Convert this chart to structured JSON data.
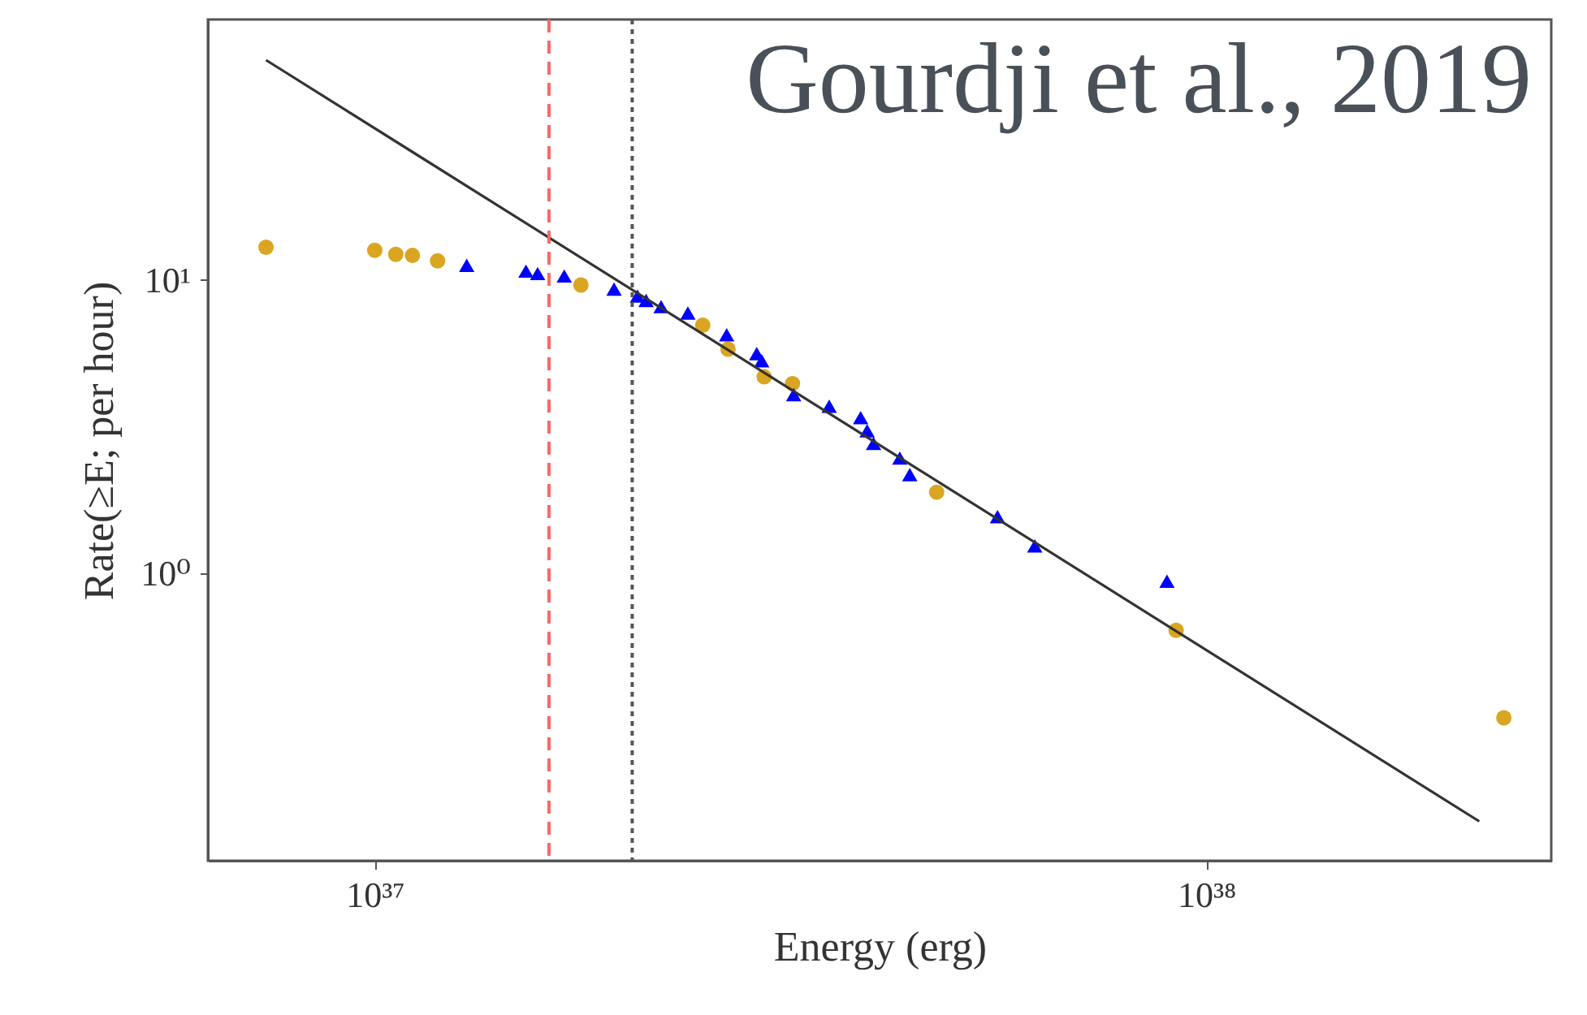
{
  "chart_data": {
    "type": "scatter",
    "xlabel": "Energy (erg)",
    "ylabel": "Rate(≥E; per hour)",
    "log": "xy",
    "grid": false,
    "xlim": [
      6.3e+36,
      2.6e+38
    ],
    "ylim": [
      0.105,
      77
    ],
    "xticks": [
      {
        "value": 1e+37,
        "label": "10³⁷"
      },
      {
        "value": 1e+38,
        "label": "10³⁸"
      }
    ],
    "yticks": [
      {
        "value": 1,
        "label": "10⁰"
      },
      {
        "value": 10,
        "label": "10¹"
      }
    ],
    "annotations": [
      "Gourdji et al., 2019"
    ],
    "ref_lines": [
      {
        "axis": "x",
        "value": 1.62e+37,
        "color": "#ff6666",
        "line_style": "dashed"
      },
      {
        "axis": "x",
        "value": 2.04e+37,
        "color": "#555555",
        "line_style": "dotted"
      }
    ],
    "series": [
      {
        "color": "#daa520",
        "marker": "circle",
        "x": [
          7.4e+36,
          1e+37,
          1.06e+37,
          1.11e+37,
          1.19e+37,
          1.77e+37,
          2.48e+37,
          2.66e+37,
          2.94e+37,
          3.18e+37,
          4.74e+37,
          9.2e+37,
          2.28e+38
        ],
        "values": [
          12.9,
          12.6,
          12.2,
          12.1,
          11.6,
          9.6,
          7.0,
          5.8,
          4.67,
          4.43,
          1.89,
          0.64,
          0.322
        ]
      },
      {
        "color": "#0000ff",
        "marker": "triangle",
        "x": [
          1.29e+37,
          1.52e+37,
          1.57e+37,
          1.69e+37,
          1.94e+37,
          2.07e+37,
          2.12e+37,
          2.21e+37,
          2.38e+37,
          2.65e+37,
          2.88e+37,
          2.92e+37,
          3.19e+37,
          3.52e+37,
          3.84e+37,
          3.91e+37,
          3.98e+37,
          4.28e+37,
          4.4e+37,
          5.61e+37,
          6.22e+37,
          8.97e+37
        ],
        "values": [
          11.2,
          10.7,
          10.5,
          10.3,
          9.3,
          8.8,
          8.5,
          8.1,
          7.7,
          6.5,
          5.6,
          5.3,
          4.06,
          3.71,
          3.39,
          3.06,
          2.77,
          2.47,
          2.17,
          1.56,
          1.24,
          0.94
        ]
      },
      {
        "type": "line",
        "color": "#333333",
        "marker": "none",
        "line_style": "solid",
        "x": [
          7.4e+36,
          2.13e+38
        ],
        "values": [
          56,
          0.143
        ]
      }
    ]
  }
}
